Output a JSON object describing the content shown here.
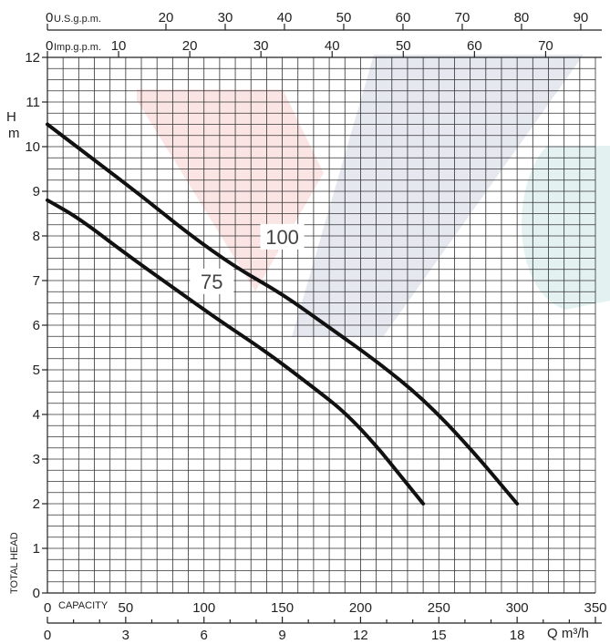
{
  "chart_data": {
    "type": "line",
    "y_axis": {
      "label_top": "H",
      "label_unit": "m",
      "label_side": "TOTAL HEAD",
      "range": [
        0,
        12
      ],
      "ticks": [
        0,
        1,
        2,
        3,
        4,
        5,
        6,
        7,
        8,
        9,
        10,
        11,
        12
      ]
    },
    "x_axis_capacity": {
      "label": "CAPACITY",
      "range": [
        0,
        350
      ],
      "ticks": [
        0,
        50,
        100,
        150,
        200,
        250,
        300,
        350
      ]
    },
    "x_axis_m3h": {
      "label": "Q m³/h",
      "range": [
        0,
        21
      ],
      "ticks": [
        0,
        3,
        6,
        9,
        12,
        15,
        18
      ]
    },
    "x_axis_us_gpm": {
      "label": "U.S.g.p.m.",
      "ticks": [
        0,
        20,
        30,
        40,
        50,
        60,
        70,
        80,
        90
      ]
    },
    "x_axis_imp_gpm": {
      "label": "Imp.g.p.m.",
      "ticks": [
        0,
        10,
        20,
        30,
        40,
        50,
        60,
        70
      ]
    },
    "series": [
      {
        "name": "100",
        "points": [
          [
            0,
            10.5
          ],
          [
            30,
            9.7
          ],
          [
            60,
            8.9
          ],
          [
            90,
            8.05
          ],
          [
            120,
            7.3
          ],
          [
            150,
            6.7
          ],
          [
            180,
            5.95
          ],
          [
            210,
            5.2
          ],
          [
            240,
            4.35
          ],
          [
            270,
            3.25
          ],
          [
            300,
            2.0
          ]
        ]
      },
      {
        "name": "75",
        "points": [
          [
            0,
            8.8
          ],
          [
            20,
            8.4
          ],
          [
            50,
            7.6
          ],
          [
            80,
            6.85
          ],
          [
            110,
            6.1
          ],
          [
            140,
            5.4
          ],
          [
            170,
            4.6
          ],
          [
            190,
            4.05
          ],
          [
            210,
            3.3
          ],
          [
            225,
            2.65
          ],
          [
            240,
            2.0
          ]
        ]
      }
    ],
    "grid": true
  }
}
